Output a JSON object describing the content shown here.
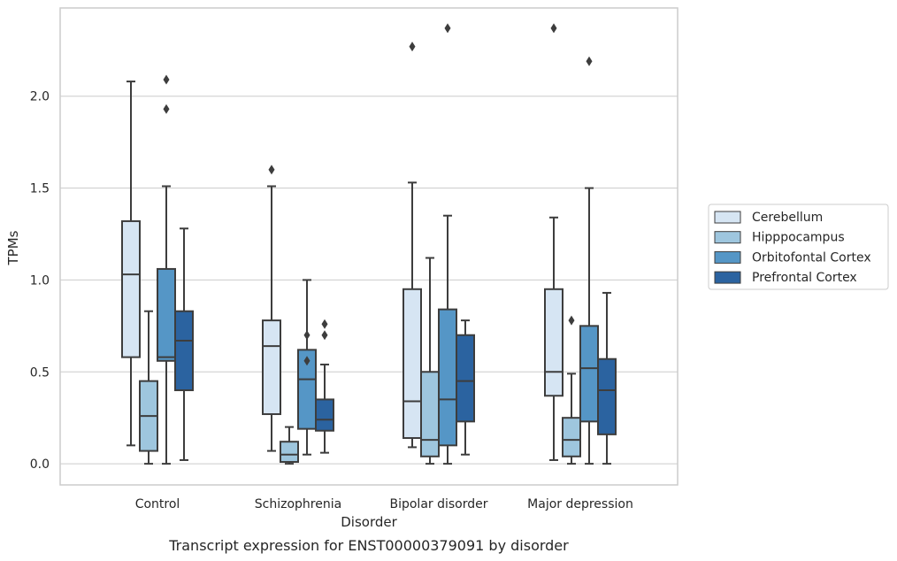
{
  "chart_data": {
    "type": "box",
    "title": "Transcript expression for ENST00000379091 by disorder",
    "xlabel": "Disorder",
    "ylabel": "TPMs",
    "ylim": [
      -0.115,
      2.48
    ],
    "yticks": [
      0.0,
      0.5,
      1.0,
      1.5,
      2.0
    ],
    "ytick_labels": [
      "0.0",
      "0.5",
      "1.0",
      "1.5",
      "2.0"
    ],
    "grid": "horizontal",
    "legend_position": "right",
    "categories": [
      "Control",
      "Schizophrenia",
      "Bipolar disorder",
      "Major depression"
    ],
    "series": [
      {
        "name": "Cerebellum",
        "color": "#d6e5f3",
        "boxes": [
          {
            "whislo": 0.1,
            "q1": 0.58,
            "med": 1.03,
            "q3": 1.32,
            "whishi": 2.08,
            "fliers": []
          },
          {
            "whislo": 0.07,
            "q1": 0.27,
            "med": 0.64,
            "q3": 0.78,
            "whishi": 1.51,
            "fliers": [
              1.6
            ]
          },
          {
            "whislo": 0.09,
            "q1": 0.14,
            "med": 0.34,
            "q3": 0.95,
            "whishi": 1.53,
            "fliers": [
              2.27
            ]
          },
          {
            "whislo": 0.02,
            "q1": 0.37,
            "med": 0.5,
            "q3": 0.95,
            "whishi": 1.34,
            "fliers": [
              2.37
            ]
          }
        ]
      },
      {
        "name": "Hipppocampus",
        "color": "#9ec6de",
        "boxes": [
          {
            "whislo": 0.0,
            "q1": 0.07,
            "med": 0.26,
            "q3": 0.45,
            "whishi": 0.83,
            "fliers": []
          },
          {
            "whislo": 0.0,
            "q1": 0.01,
            "med": 0.05,
            "q3": 0.12,
            "whishi": 0.2,
            "fliers": []
          },
          {
            "whislo": 0.0,
            "q1": 0.04,
            "med": 0.13,
            "q3": 0.5,
            "whishi": 1.12,
            "fliers": []
          },
          {
            "whislo": 0.0,
            "q1": 0.04,
            "med": 0.13,
            "q3": 0.25,
            "whishi": 0.49,
            "fliers": [
              0.78
            ]
          }
        ]
      },
      {
        "name": "Orbitofontal Cortex",
        "color": "#5596c6",
        "boxes": [
          {
            "whislo": 0.0,
            "q1": 0.56,
            "med": 0.58,
            "q3": 1.06,
            "whishi": 1.51,
            "fliers": [
              1.93,
              2.09
            ]
          },
          {
            "whislo": 0.05,
            "q1": 0.19,
            "med": 0.46,
            "q3": 0.62,
            "whishi": 1.0,
            "fliers": [
              0.56,
              0.7
            ]
          },
          {
            "whislo": 0.0,
            "q1": 0.1,
            "med": 0.35,
            "q3": 0.84,
            "whishi": 1.35,
            "fliers": [
              2.37
            ]
          },
          {
            "whislo": 0.0,
            "q1": 0.23,
            "med": 0.52,
            "q3": 0.75,
            "whishi": 1.5,
            "fliers": [
              2.19
            ]
          }
        ]
      },
      {
        "name": "Prefrontal Cortex",
        "color": "#2b63a0",
        "boxes": [
          {
            "whislo": 0.02,
            "q1": 0.4,
            "med": 0.67,
            "q3": 0.83,
            "whishi": 1.28,
            "fliers": []
          },
          {
            "whislo": 0.06,
            "q1": 0.18,
            "med": 0.24,
            "q3": 0.35,
            "whishi": 0.54,
            "fliers": [
              0.7,
              0.76
            ]
          },
          {
            "whislo": 0.05,
            "q1": 0.23,
            "med": 0.45,
            "q3": 0.7,
            "whishi": 0.78,
            "fliers": []
          },
          {
            "whislo": 0.0,
            "q1": 0.16,
            "med": 0.4,
            "q3": 0.57,
            "whishi": 0.93,
            "fliers": []
          }
        ]
      }
    ]
  }
}
